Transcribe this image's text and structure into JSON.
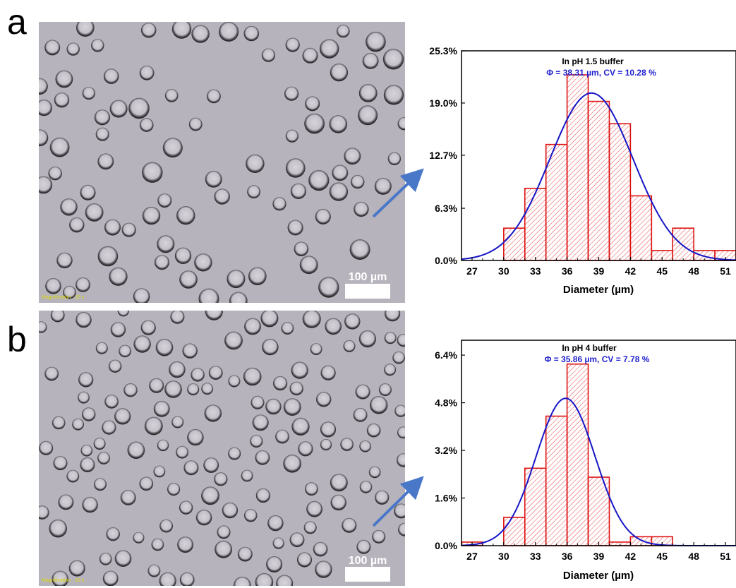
{
  "panels": [
    {
      "letter": "a",
      "micrograph": {
        "scale_bar_label": "100 µm",
        "magnification_label": "Magnification : 10 x"
      },
      "chart_data": {
        "type": "bar",
        "title": "In pH 1.5 buffer",
        "subtitle": "Φ = 38.31 µm, CV = 10.28 %",
        "xlabel": "Diameter (µm)",
        "ylabel": "",
        "bin_edges": [
          26,
          28,
          30,
          32,
          34,
          36,
          38,
          40,
          42,
          44,
          46,
          48,
          50,
          52
        ],
        "values": [
          0,
          0,
          3.9,
          8.7,
          14.0,
          22.4,
          19.2,
          16.5,
          7.8,
          1.2,
          3.9,
          1.2,
          1.2
        ],
        "fit": {
          "type": "gaussian",
          "mean": 38.31,
          "peak": 20.2,
          "sigma": 3.94
        },
        "xlim": [
          26,
          52
        ],
        "ylim": [
          0,
          25.3
        ],
        "xticks": [
          27,
          30,
          33,
          36,
          39,
          42,
          45,
          48,
          51
        ],
        "yticks": [
          0,
          6.3,
          12.7,
          19.0,
          25.3
        ],
        "ytick_labels": [
          "0.0%",
          "6.3%",
          "12.7%",
          "19.0%",
          "25.3%"
        ],
        "colors": {
          "bar_edge": "#dd1111",
          "fit": "#1515c8"
        }
      }
    },
    {
      "letter": "b",
      "micrograph": {
        "scale_bar_label": "100 µm",
        "magnification_label": "Magnification : 10 x"
      },
      "chart_data": {
        "type": "bar",
        "title": "In pH 4 buffer",
        "subtitle": "Φ = 35.86 µm, CV = 7.78 %",
        "xlabel": "Diameter (µm)",
        "ylabel": "",
        "bin_edges": [
          26,
          28,
          30,
          32,
          34,
          36,
          38,
          40,
          42,
          44,
          46,
          48,
          50,
          52
        ],
        "values": [
          0.12,
          0,
          0.95,
          2.6,
          4.35,
          6.1,
          2.3,
          0.12,
          0.3,
          0.3,
          0,
          0,
          0
        ],
        "fit": {
          "type": "gaussian",
          "mean": 35.86,
          "peak": 4.95,
          "sigma": 2.79
        },
        "xlim": [
          26,
          52
        ],
        "ylim": [
          0,
          6.9
        ],
        "xticks": [
          27,
          30,
          33,
          36,
          39,
          42,
          45,
          48,
          51
        ],
        "yticks": [
          0,
          1.6,
          3.2,
          4.8,
          6.4
        ],
        "ytick_labels": [
          "0.0%",
          "1.6%",
          "3.2%",
          "4.8%",
          "6.4%"
        ],
        "colors": {
          "bar_edge": "#dd1111",
          "fit": "#1515c8"
        }
      }
    }
  ],
  "colors": {
    "arrow": "#4a78c8",
    "micrograph_bg": "#b7b3bd"
  }
}
